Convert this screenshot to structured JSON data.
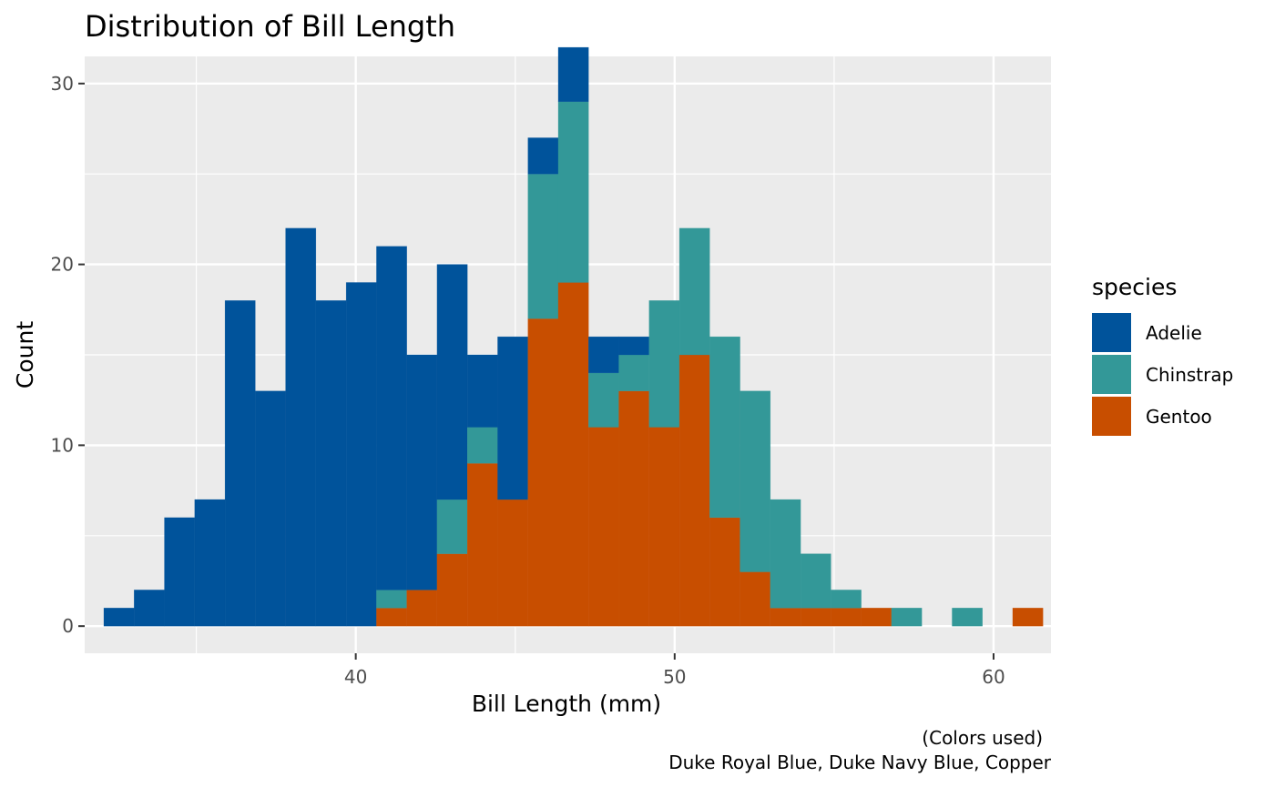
{
  "chart_data": {
    "type": "bar",
    "title": "Distribution of Bill Length",
    "xlabel": "Bill Length (mm)",
    "ylabel": "Count",
    "xlim": [
      31.5,
      61.8
    ],
    "ylim": [
      -1.5,
      31.5
    ],
    "xticks": [
      40,
      50,
      60
    ],
    "yticks": [
      0,
      10,
      20,
      30
    ],
    "grid": true,
    "bin_width": 0.95,
    "bin_start": 32.1,
    "stacked": true,
    "legend": {
      "title": "species",
      "placement": "right",
      "entries": [
        {
          "name": "Adelie",
          "color": "#00539B"
        },
        {
          "name": "Chinstrap",
          "color": "#339898"
        },
        {
          "name": "Gentoo",
          "color": "#C84E00"
        }
      ]
    },
    "series": [
      {
        "name": "Adelie",
        "color": "#00539B",
        "values": [
          1,
          2,
          6,
          7,
          18,
          13,
          22,
          18,
          19,
          19,
          13,
          13,
          4,
          9,
          2,
          3,
          2,
          1,
          0,
          0,
          0,
          0,
          0,
          0,
          0,
          0,
          0,
          0,
          0,
          0,
          0,
          0
        ]
      },
      {
        "name": "Chinstrap",
        "color": "#339898",
        "values": [
          0,
          0,
          0,
          0,
          0,
          0,
          0,
          0,
          0,
          1,
          0,
          3,
          2,
          0,
          8,
          10,
          3,
          2,
          7,
          7,
          10,
          10,
          6,
          3,
          1,
          0,
          1,
          0,
          1,
          0,
          0,
          0
        ]
      },
      {
        "name": "Gentoo",
        "color": "#C84E00",
        "values": [
          0,
          0,
          0,
          0,
          0,
          0,
          0,
          0,
          0,
          1,
          2,
          4,
          9,
          7,
          17,
          19,
          11,
          13,
          11,
          15,
          6,
          3,
          1,
          1,
          1,
          1,
          0,
          0,
          0,
          0,
          1,
          0
        ]
      }
    ],
    "caption": {
      "line1": "(Colors used)",
      "line2": "Duke Royal Blue, Duke Navy Blue, Copper"
    }
  }
}
